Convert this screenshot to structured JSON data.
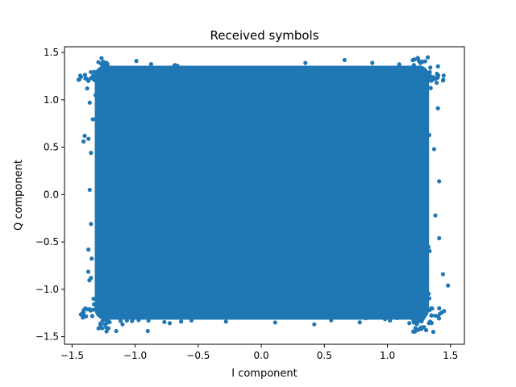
{
  "chart_data": {
    "type": "scatter",
    "title": "Received symbols",
    "xlabel": "I component",
    "ylabel": "Q component",
    "xlim": [
      -1.56,
      1.61
    ],
    "ylim": [
      -1.58,
      1.56
    ],
    "x_ticks": [
      -1.5,
      -1.0,
      -0.5,
      0.0,
      0.5,
      1.0,
      1.5
    ],
    "x_tick_labels": [
      "−1.5",
      "−1.0",
      "−0.5",
      "0.0",
      "0.5",
      "1.0",
      "1.5"
    ],
    "y_ticks": [
      -1.5,
      -1.0,
      -0.5,
      0.0,
      0.5,
      1.0,
      1.5
    ],
    "y_tick_labels": [
      "−1.5",
      "−1.0",
      "−0.5",
      "0.0",
      "0.5",
      "1.0",
      "1.5"
    ],
    "grid": false,
    "legend": "none",
    "color": "#1f77b4",
    "series": [
      {
        "values_bulk_region": {
          "i": [
            -1.32,
            1.33
          ],
          "q": [
            -1.32,
            1.36
          ]
        },
        "outliers": [
          {
            "x": -1.38,
            "y": 1.12
          },
          {
            "x": -1.36,
            "y": 0.97
          },
          {
            "x": -1.4,
            "y": 0.62
          },
          {
            "x": -1.35,
            "y": 0.44
          },
          {
            "x": -1.36,
            "y": 0.05
          },
          {
            "x": -1.35,
            "y": -0.31
          },
          {
            "x": -1.37,
            "y": -0.58
          },
          {
            "x": -1.35,
            "y": -0.88
          },
          {
            "x": -1.33,
            "y": -1.1
          },
          {
            "x": -1.15,
            "y": -1.44
          },
          {
            "x": -0.9,
            "y": -1.44
          },
          {
            "x": -0.99,
            "y": 1.41
          },
          {
            "x": -0.69,
            "y": 1.36
          },
          {
            "x": 0.35,
            "y": 1.39
          },
          {
            "x": 0.66,
            "y": 1.42
          },
          {
            "x": 0.88,
            "y": 1.39
          },
          {
            "x": 1.34,
            "y": 1.34
          },
          {
            "x": 1.39,
            "y": 1.18
          },
          {
            "x": 1.4,
            "y": 0.91
          },
          {
            "x": 1.37,
            "y": 0.48
          },
          {
            "x": 1.41,
            "y": 0.14
          },
          {
            "x": 1.38,
            "y": -0.22
          },
          {
            "x": 1.41,
            "y": -0.46
          },
          {
            "x": 1.44,
            "y": -0.84
          },
          {
            "x": 1.48,
            "y": -0.96
          },
          {
            "x": 1.35,
            "y": -1.2
          },
          {
            "x": 0.42,
            "y": -1.37
          },
          {
            "x": 0.11,
            "y": -1.35
          },
          {
            "x": -0.28,
            "y": -1.34
          },
          {
            "x": 1.02,
            "y": -1.33
          },
          {
            "x": -1.1,
            "y": -1.37
          },
          {
            "x": 1.28,
            "y": -1.31
          }
        ]
      }
    ]
  }
}
